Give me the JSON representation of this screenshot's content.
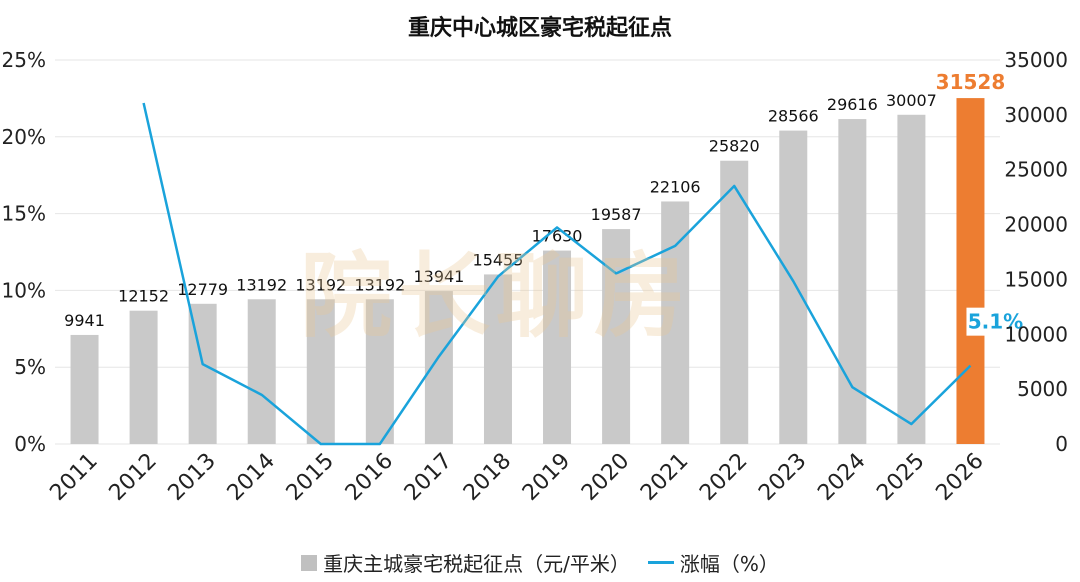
{
  "chart_data": {
    "type": "bar",
    "title": "重庆中心城区豪宅税起征点",
    "categories": [
      "2011",
      "2012",
      "2013",
      "2014",
      "2015",
      "2016",
      "2017",
      "2018",
      "2019",
      "2020",
      "2021",
      "2022",
      "2023",
      "2024",
      "2025",
      "2026"
    ],
    "bar_series": {
      "name": "重庆主城豪宅税起征点（元/平米）",
      "values": [
        9941,
        12152,
        12779,
        13192,
        13192,
        13192,
        13941,
        15455,
        17630,
        19587,
        22106,
        25820,
        28566,
        29616,
        30007,
        31528
      ],
      "axis": "right",
      "color": "#c9c9c9",
      "highlight_index": 15,
      "highlight_color": "#ed7d31"
    },
    "line_series": {
      "name": "涨幅（%）",
      "x": [
        "2012",
        "2013",
        "2014",
        "2015",
        "2016",
        "2017",
        "2018",
        "2019",
        "2020",
        "2021",
        "2022",
        "2023",
        "2024",
        "2025",
        "2026"
      ],
      "values": [
        22.2,
        5.2,
        3.2,
        0,
        0,
        5.7,
        10.9,
        14.1,
        11.1,
        12.9,
        16.8,
        10.6,
        3.7,
        1.3,
        5.1
      ],
      "axis": "left",
      "color": "#1aa3db"
    },
    "line_label": {
      "index": 14,
      "text": "5.1%"
    },
    "left_axis": {
      "ticks": [
        "0%",
        "5%",
        "10%",
        "15%",
        "20%",
        "25%"
      ],
      "min": 0,
      "max": 25
    },
    "right_axis": {
      "ticks": [
        "0",
        "5000",
        "10000",
        "15000",
        "20000",
        "25000",
        "30000",
        "35000"
      ],
      "min": 0,
      "max": 35000
    },
    "grid": true,
    "legend_position": "bottom",
    "watermark": "院长聊房"
  },
  "legend": {
    "bar_label": "重庆主城豪宅税起征点（元/平米）",
    "line_label": "涨幅（%）"
  }
}
